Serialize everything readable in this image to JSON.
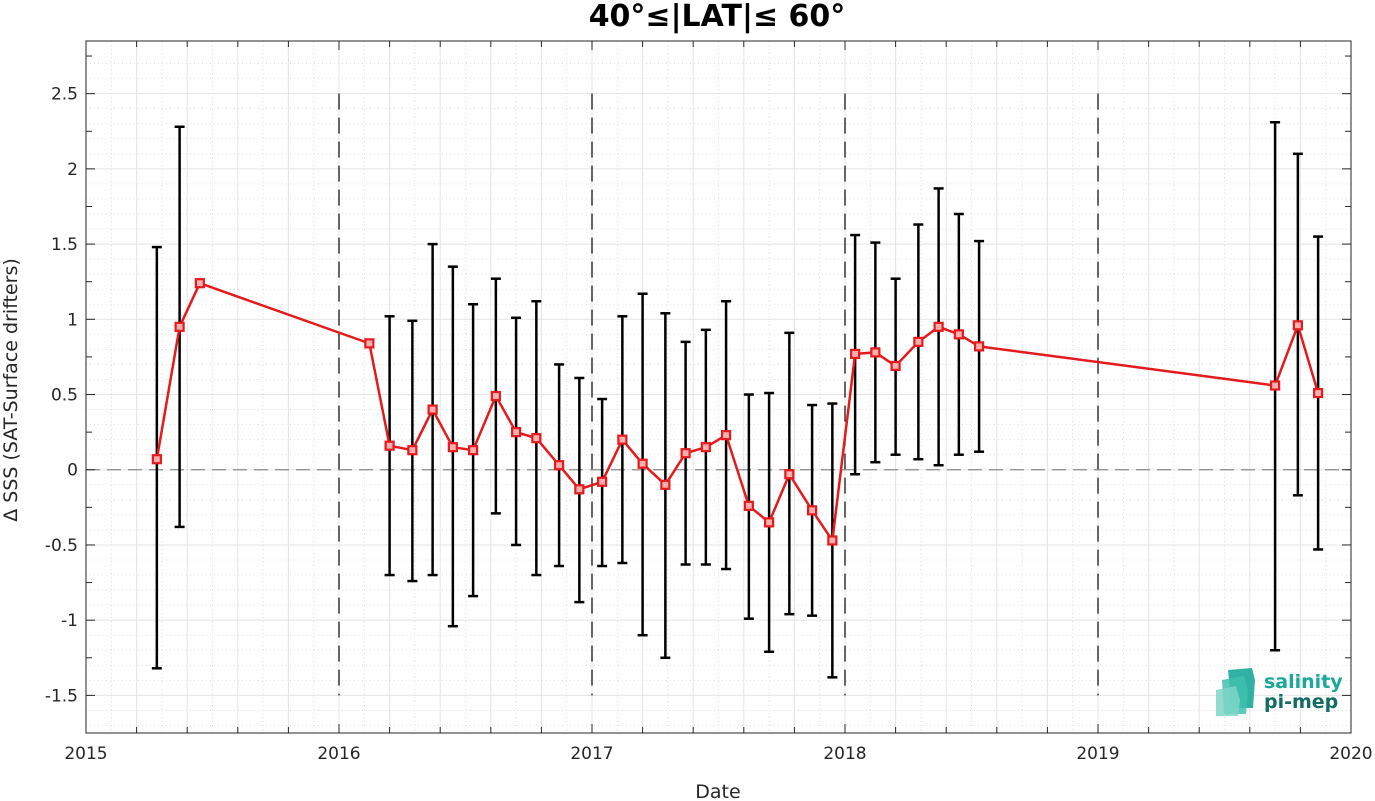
{
  "chart_data": {
    "type": "line",
    "title": "40°≤|LAT|≤ 60°",
    "xlabel": "Date",
    "ylabel": "Δ SSS (SAT-Surface drifters)",
    "xlim": [
      2015,
      2020
    ],
    "ylim": [
      -1.75,
      2.85
    ],
    "x_ticks": [
      "2015",
      "2016",
      "2017",
      "2018",
      "2019",
      "2020"
    ],
    "y_ticks": [
      "-1.5",
      "-1",
      "-0.5",
      "0",
      "0.5",
      "1",
      "1.5",
      "2",
      "2.5"
    ],
    "y_tick_values": [
      -1.5,
      -1,
      -0.5,
      0,
      0.5,
      1,
      1.5,
      2,
      2.5
    ],
    "grid": true,
    "year_separators": [
      2016,
      2017,
      2018,
      2019
    ],
    "zero_line": 0,
    "series": [
      {
        "color": "#e41a1c",
        "error_bar_color": "#000000",
        "points": [
          {
            "x": 2015.28,
            "y": 0.07,
            "lo": -1.32,
            "hi": 1.48
          },
          {
            "x": 2015.37,
            "y": 0.95,
            "lo": -0.38,
            "hi": 2.28
          },
          {
            "x": 2015.45,
            "y": 1.24,
            "lo": null,
            "hi": null
          },
          {
            "x": 2016.12,
            "y": 0.84,
            "lo": null,
            "hi": null
          },
          {
            "x": 2016.2,
            "y": 0.16,
            "lo": -0.7,
            "hi": 1.02
          },
          {
            "x": 2016.29,
            "y": 0.13,
            "lo": -0.74,
            "hi": 0.99
          },
          {
            "x": 2016.37,
            "y": 0.4,
            "lo": -0.7,
            "hi": 1.5
          },
          {
            "x": 2016.45,
            "y": 0.15,
            "lo": -1.04,
            "hi": 1.35
          },
          {
            "x": 2016.53,
            "y": 0.13,
            "lo": -0.84,
            "hi": 1.1
          },
          {
            "x": 2016.62,
            "y": 0.49,
            "lo": -0.29,
            "hi": 1.27
          },
          {
            "x": 2016.7,
            "y": 0.25,
            "lo": -0.5,
            "hi": 1.01
          },
          {
            "x": 2016.78,
            "y": 0.21,
            "lo": -0.7,
            "hi": 1.12
          },
          {
            "x": 2016.87,
            "y": 0.03,
            "lo": -0.64,
            "hi": 0.7
          },
          {
            "x": 2016.95,
            "y": -0.13,
            "lo": -0.88,
            "hi": 0.61
          },
          {
            "x": 2017.04,
            "y": -0.08,
            "lo": -0.64,
            "hi": 0.47
          },
          {
            "x": 2017.12,
            "y": 0.2,
            "lo": -0.62,
            "hi": 1.02
          },
          {
            "x": 2017.2,
            "y": 0.04,
            "lo": -1.1,
            "hi": 1.17
          },
          {
            "x": 2017.29,
            "y": -0.1,
            "lo": -1.25,
            "hi": 1.04
          },
          {
            "x": 2017.37,
            "y": 0.11,
            "lo": -0.63,
            "hi": 0.85
          },
          {
            "x": 2017.45,
            "y": 0.15,
            "lo": -0.63,
            "hi": 0.93
          },
          {
            "x": 2017.53,
            "y": 0.23,
            "lo": -0.66,
            "hi": 1.12
          },
          {
            "x": 2017.62,
            "y": -0.24,
            "lo": -0.99,
            "hi": 0.5
          },
          {
            "x": 2017.7,
            "y": -0.35,
            "lo": -1.21,
            "hi": 0.51
          },
          {
            "x": 2017.78,
            "y": -0.03,
            "lo": -0.96,
            "hi": 0.91
          },
          {
            "x": 2017.87,
            "y": -0.27,
            "lo": -0.97,
            "hi": 0.43
          },
          {
            "x": 2017.95,
            "y": -0.47,
            "lo": -1.38,
            "hi": 0.44
          },
          {
            "x": 2018.04,
            "y": 0.77,
            "lo": -0.03,
            "hi": 1.56
          },
          {
            "x": 2018.12,
            "y": 0.78,
            "lo": 0.05,
            "hi": 1.51
          },
          {
            "x": 2018.2,
            "y": 0.69,
            "lo": 0.1,
            "hi": 1.27
          },
          {
            "x": 2018.29,
            "y": 0.85,
            "lo": 0.07,
            "hi": 1.63
          },
          {
            "x": 2018.37,
            "y": 0.95,
            "lo": 0.03,
            "hi": 1.87
          },
          {
            "x": 2018.45,
            "y": 0.9,
            "lo": 0.1,
            "hi": 1.7
          },
          {
            "x": 2018.53,
            "y": 0.82,
            "lo": 0.12,
            "hi": 1.52
          },
          {
            "x": 2019.7,
            "y": 0.56,
            "lo": -1.2,
            "hi": 2.31
          },
          {
            "x": 2019.79,
            "y": 0.96,
            "lo": -0.17,
            "hi": 2.1
          },
          {
            "x": 2019.87,
            "y": 0.51,
            "lo": -0.53,
            "hi": 1.55
          }
        ]
      }
    ]
  },
  "logo": {
    "line1": "salinity",
    "line2": "pi-mep",
    "color1": "#1aa89a",
    "color2": "#156c66"
  }
}
